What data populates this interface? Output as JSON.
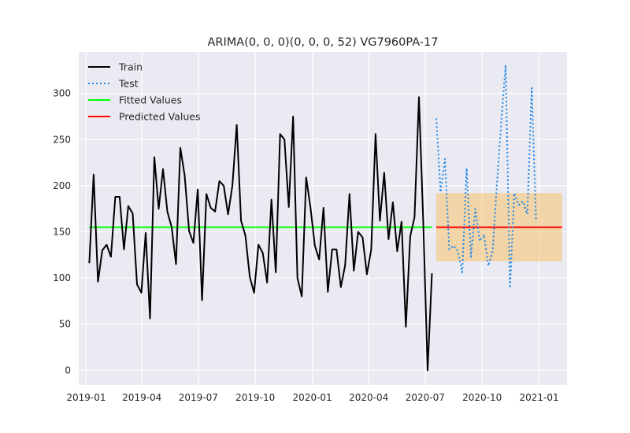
{
  "chart_data": {
    "type": "line",
    "title": "ARIMA(0, 0, 0)(0, 0, 0, 52) VG7960PA-17",
    "xlabel": "",
    "ylabel": "",
    "x_ticks": [
      "2019-01",
      "2019-04",
      "2019-07",
      "2019-10",
      "2020-01",
      "2020-04",
      "2020-07",
      "2020-10",
      "2021-01"
    ],
    "y_ticks": [
      0,
      50,
      100,
      150,
      200,
      250,
      300
    ],
    "ylim": [
      -16,
      345
    ],
    "xlim": [
      "2018-12-20",
      "2021-02-15"
    ],
    "grid": true,
    "legend_position": "top-left",
    "colors": {
      "background": "#eaeaf2",
      "grid": "#ffffff",
      "train": "#000000",
      "test": "#1e88e5",
      "fitted": "#00ff00",
      "predicted": "#ff0000",
      "interval": "#f5c16c"
    },
    "series": [
      {
        "name": "Train",
        "style": "solid",
        "x": [
          "2019-01-06",
          "2019-01-13",
          "2019-01-20",
          "2019-01-27",
          "2019-02-03",
          "2019-02-10",
          "2019-02-17",
          "2019-02-24",
          "2019-03-03",
          "2019-03-10",
          "2019-03-17",
          "2019-03-24",
          "2019-03-31",
          "2019-04-07",
          "2019-04-14",
          "2019-04-21",
          "2019-04-28",
          "2019-05-05",
          "2019-05-12",
          "2019-05-19",
          "2019-05-26",
          "2019-06-02",
          "2019-06-09",
          "2019-06-16",
          "2019-06-23",
          "2019-06-30",
          "2019-07-07",
          "2019-07-14",
          "2019-07-21",
          "2019-07-28",
          "2019-08-04",
          "2019-08-11",
          "2019-08-18",
          "2019-08-25",
          "2019-09-01",
          "2019-09-08",
          "2019-09-15",
          "2019-09-22",
          "2019-09-29",
          "2019-10-06",
          "2019-10-13",
          "2019-10-20",
          "2019-10-27",
          "2019-11-03",
          "2019-11-10",
          "2019-11-17",
          "2019-11-24",
          "2019-12-01",
          "2019-12-08",
          "2019-12-15",
          "2019-12-22",
          "2019-12-29",
          "2020-01-05",
          "2020-01-12",
          "2020-01-19",
          "2020-01-26",
          "2020-02-02",
          "2020-02-09",
          "2020-02-16",
          "2020-02-23",
          "2020-03-01",
          "2020-03-08",
          "2020-03-15",
          "2020-03-22",
          "2020-03-29",
          "2020-04-05",
          "2020-04-12",
          "2020-04-19",
          "2020-04-26",
          "2020-05-03",
          "2020-05-10",
          "2020-05-17",
          "2020-05-24",
          "2020-05-31",
          "2020-06-07",
          "2020-06-14",
          "2020-06-21",
          "2020-06-28",
          "2020-07-05",
          "2020-07-12"
        ],
        "values": [
          116,
          212,
          96,
          130,
          136,
          123,
          188,
          188,
          131,
          178,
          170,
          93,
          84,
          149,
          56,
          231,
          175,
          218,
          172,
          155,
          115,
          241,
          211,
          151,
          138,
          196,
          76,
          191,
          176,
          172,
          205,
          200,
          169,
          200,
          266,
          162,
          146,
          101,
          84,
          136,
          127,
          95,
          185,
          106,
          256,
          250,
          177,
          275,
          100,
          80,
          209,
          176,
          135,
          120,
          176,
          85,
          131,
          131,
          90,
          114,
          191,
          108,
          150,
          144,
          104,
          131,
          256,
          162,
          214,
          142,
          182,
          129,
          161,
          47,
          145,
          166,
          296,
          160,
          0,
          105
        ]
      },
      {
        "name": "Test",
        "style": "dotted",
        "x": [
          "2020-07-19",
          "2020-07-26",
          "2020-08-02",
          "2020-08-09",
          "2020-08-16",
          "2020-08-23",
          "2020-08-30",
          "2020-09-06",
          "2020-09-13",
          "2020-09-20",
          "2020-09-27",
          "2020-10-04",
          "2020-10-11",
          "2020-10-18",
          "2020-10-25",
          "2020-11-01",
          "2020-11-08",
          "2020-11-15",
          "2020-11-22",
          "2020-11-29",
          "2020-12-06",
          "2020-12-13",
          "2020-12-20",
          "2020-12-27",
          "2021-01-03"
        ],
        "values": [
          273,
          193,
          229,
          131,
          135,
          129,
          106,
          219,
          123,
          175,
          140,
          147,
          113,
          129,
          203,
          270,
          331,
          89,
          192,
          179,
          183,
          169,
          306,
          161,
          null
        ]
      },
      {
        "name": "Fitted Values",
        "style": "solid",
        "x": [
          "2019-01-06",
          "2020-07-12"
        ],
        "values": [
          155,
          155
        ]
      },
      {
        "name": "Predicted Values",
        "style": "solid",
        "x": [
          "2020-07-19",
          "2021-02-07"
        ],
        "values": [
          155,
          155
        ]
      }
    ],
    "interval": {
      "x": [
        "2020-07-19",
        "2021-02-07"
      ],
      "lower": 118,
      "upper": 192
    }
  }
}
